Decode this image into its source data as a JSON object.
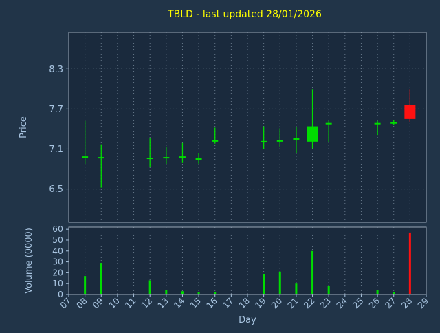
{
  "chart_data": {
    "type": "candlestick",
    "title": "TBLD - last updated 28/01/2026",
    "xlabel": "Day",
    "ylabel_price": "Price",
    "ylabel_volume": "Volume (0000)",
    "x_tick_labels": [
      "07",
      "08",
      "09",
      "10",
      "11",
      "12",
      "13",
      "14",
      "15",
      "16",
      "17",
      "18",
      "19",
      "20",
      "21",
      "22",
      "23",
      "24",
      "25",
      "26",
      "27",
      "28",
      "29"
    ],
    "x_domain": [
      7,
      29
    ],
    "price_ticks": [
      6.5,
      7.1,
      7.7,
      8.3
    ],
    "price_ylim": [
      6.0,
      8.85
    ],
    "volume_ticks": [
      0,
      10,
      20,
      30,
      40,
      50,
      60
    ],
    "volume_ylim": [
      0,
      62
    ],
    "grid": "dotted-vertical-and-price-horizontal",
    "legend": "off",
    "candles": [
      {
        "day": 8,
        "open": 6.99,
        "high": 7.52,
        "low": 6.87,
        "close": 6.99,
        "volume": 17,
        "direction": "up"
      },
      {
        "day": 9,
        "open": 6.98,
        "high": 7.16,
        "low": 6.52,
        "close": 6.98,
        "volume": 29,
        "direction": "up"
      },
      {
        "day": 12,
        "open": 6.97,
        "high": 7.26,
        "low": 6.83,
        "close": 6.97,
        "volume": 13,
        "direction": "up"
      },
      {
        "day": 13,
        "open": 6.98,
        "high": 7.13,
        "low": 6.87,
        "close": 6.98,
        "volume": 4,
        "direction": "up"
      },
      {
        "day": 14,
        "open": 6.99,
        "high": 7.19,
        "low": 6.89,
        "close": 6.99,
        "volume": 3,
        "direction": "up"
      },
      {
        "day": 15,
        "open": 6.96,
        "high": 7.04,
        "low": 6.88,
        "close": 6.96,
        "volume": 2,
        "direction": "up"
      },
      {
        "day": 16,
        "open": 7.23,
        "high": 7.42,
        "low": 7.18,
        "close": 7.23,
        "volume": 2,
        "direction": "up"
      },
      {
        "day": 19,
        "open": 7.22,
        "high": 7.44,
        "low": 7.1,
        "close": 7.22,
        "volume": 19,
        "direction": "up"
      },
      {
        "day": 20,
        "open": 7.23,
        "high": 7.41,
        "low": 7.13,
        "close": 7.23,
        "volume": 21,
        "direction": "up"
      },
      {
        "day": 21,
        "open": 7.26,
        "high": 7.43,
        "low": 7.04,
        "close": 7.26,
        "volume": 10,
        "direction": "up"
      },
      {
        "day": 22,
        "open": 7.21,
        "high": 7.99,
        "low": 7.11,
        "close": 7.44,
        "volume": 40,
        "direction": "up"
      },
      {
        "day": 23,
        "open": 7.49,
        "high": 7.52,
        "low": 7.2,
        "close": 7.49,
        "volume": 8,
        "direction": "up"
      },
      {
        "day": 26,
        "open": 7.49,
        "high": 7.52,
        "low": 7.31,
        "close": 7.49,
        "volume": 4,
        "direction": "up"
      },
      {
        "day": 27,
        "open": 7.5,
        "high": 7.53,
        "low": 7.46,
        "close": 7.5,
        "volume": 2,
        "direction": "up"
      },
      {
        "day": 28,
        "open": 7.76,
        "high": 7.99,
        "low": 7.5,
        "close": 7.55,
        "volume": 57,
        "direction": "down"
      }
    ],
    "colors": {
      "background": "#213448",
      "plot_background": "#1a2a3d",
      "up": "#00dd00",
      "down": "#ff1111",
      "title": "#ffff00",
      "labels": "#a8c4e0",
      "grid": "#66788a",
      "spine": "#9aa8b8"
    }
  }
}
